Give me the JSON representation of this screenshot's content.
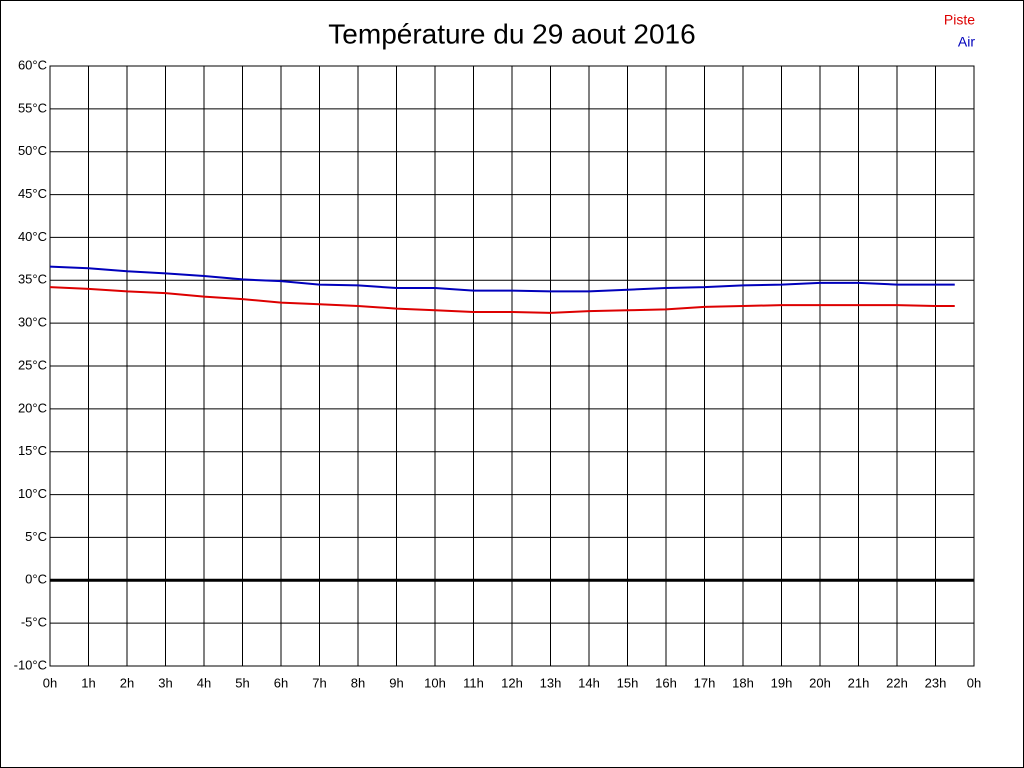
{
  "chart_data": {
    "type": "line",
    "title": "Température du 29 aout 2016",
    "x": [
      0,
      1,
      2,
      3,
      4,
      5,
      6,
      7,
      8,
      9,
      10,
      11,
      12,
      13,
      14,
      15,
      16,
      17,
      18,
      19,
      20,
      21,
      22,
      23,
      23.5
    ],
    "series": [
      {
        "name": "Piste",
        "color": "#dd0000",
        "values": [
          34.2,
          34.0,
          33.7,
          33.5,
          33.1,
          32.8,
          32.4,
          32.2,
          32.0,
          31.7,
          31.5,
          31.3,
          31.3,
          31.2,
          31.4,
          31.5,
          31.6,
          31.9,
          32.0,
          32.1,
          32.1,
          32.1,
          32.1,
          32.0,
          32.0
        ]
      },
      {
        "name": "Air",
        "color": "#0000bb",
        "values": [
          36.6,
          36.4,
          36.05,
          35.8,
          35.5,
          35.1,
          34.9,
          34.5,
          34.4,
          34.1,
          34.1,
          33.8,
          33.8,
          33.7,
          33.7,
          33.9,
          34.1,
          34.2,
          34.4,
          34.5,
          34.7,
          34.7,
          34.5,
          34.5,
          34.5
        ]
      }
    ],
    "xlim": [
      0,
      24
    ],
    "xticks": [
      {
        "value": 0,
        "label": "0h"
      },
      {
        "value": 1,
        "label": "1h"
      },
      {
        "value": 2,
        "label": "2h"
      },
      {
        "value": 3,
        "label": "3h"
      },
      {
        "value": 4,
        "label": "4h"
      },
      {
        "value": 5,
        "label": "5h"
      },
      {
        "value": 6,
        "label": "6h"
      },
      {
        "value": 7,
        "label": "7h"
      },
      {
        "value": 8,
        "label": "8h"
      },
      {
        "value": 9,
        "label": "9h"
      },
      {
        "value": 10,
        "label": "10h"
      },
      {
        "value": 11,
        "label": "11h"
      },
      {
        "value": 12,
        "label": "12h"
      },
      {
        "value": 13,
        "label": "13h"
      },
      {
        "value": 14,
        "label": "14h"
      },
      {
        "value": 15,
        "label": "15h"
      },
      {
        "value": 16,
        "label": "16h"
      },
      {
        "value": 17,
        "label": "17h"
      },
      {
        "value": 18,
        "label": "18h"
      },
      {
        "value": 19,
        "label": "19h"
      },
      {
        "value": 20,
        "label": "20h"
      },
      {
        "value": 21,
        "label": "21h"
      },
      {
        "value": 22,
        "label": "22h"
      },
      {
        "value": 23,
        "label": "23h"
      },
      {
        "value": 24,
        "label": "0h"
      }
    ],
    "ylim": [
      -10,
      60
    ],
    "yticks": [
      {
        "value": -10,
        "label": "-10°C"
      },
      {
        "value": -5,
        "label": "-5°C"
      },
      {
        "value": 0,
        "label": "0°C"
      },
      {
        "value": 5,
        "label": "5°C"
      },
      {
        "value": 10,
        "label": "10°C"
      },
      {
        "value": 15,
        "label": "15°C"
      },
      {
        "value": 20,
        "label": "20°C"
      },
      {
        "value": 25,
        "label": "25°C"
      },
      {
        "value": 30,
        "label": "30°C"
      },
      {
        "value": 35,
        "label": "35°C"
      },
      {
        "value": 40,
        "label": "40°C"
      },
      {
        "value": 45,
        "label": "45°C"
      },
      {
        "value": 50,
        "label": "50°C"
      },
      {
        "value": 55,
        "label": "55°C"
      },
      {
        "value": 60,
        "label": "60°C"
      }
    ],
    "grid": true,
    "zero_line": true,
    "legend": "top-right"
  }
}
